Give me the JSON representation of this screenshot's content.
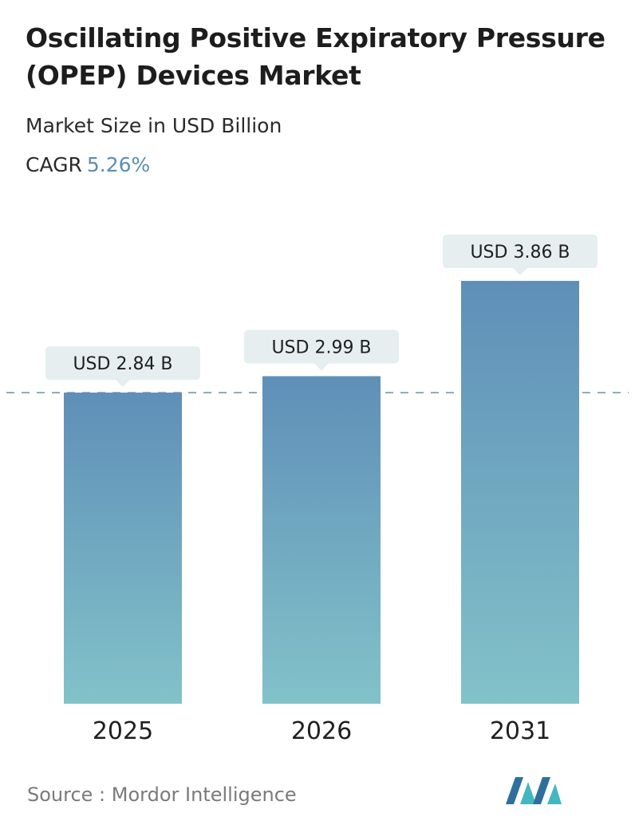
{
  "header": {
    "title": "Oscillating Positive Expiratory Pressure (OPEP) Devices Market",
    "subtitle": "Market Size in USD Billion",
    "cagr_label": "CAGR",
    "cagr_value": "5.26%"
  },
  "chart_data": {
    "type": "bar",
    "categories": [
      "2025",
      "2026",
      "2031"
    ],
    "values": [
      2.84,
      2.99,
      3.86
    ],
    "value_labels": [
      "USD 2.84 B",
      "USD 2.99 B",
      "USD 3.86 B"
    ],
    "title": "Oscillating Positive Expiratory Pressure (OPEP) Devices Market",
    "subtitle": "Market Size in USD Billion",
    "reference_line": 2.84,
    "grid": false,
    "colors": {
      "bar_top": "#5f8fb8",
      "bar_bottom": "#82c2c9",
      "label_bg": "#e6eef0",
      "reference_line": "#6d8fa0"
    }
  },
  "footer": {
    "source": "Source :  Mordor Intelligence",
    "logo_icon": "mordor-intelligence-logo"
  }
}
